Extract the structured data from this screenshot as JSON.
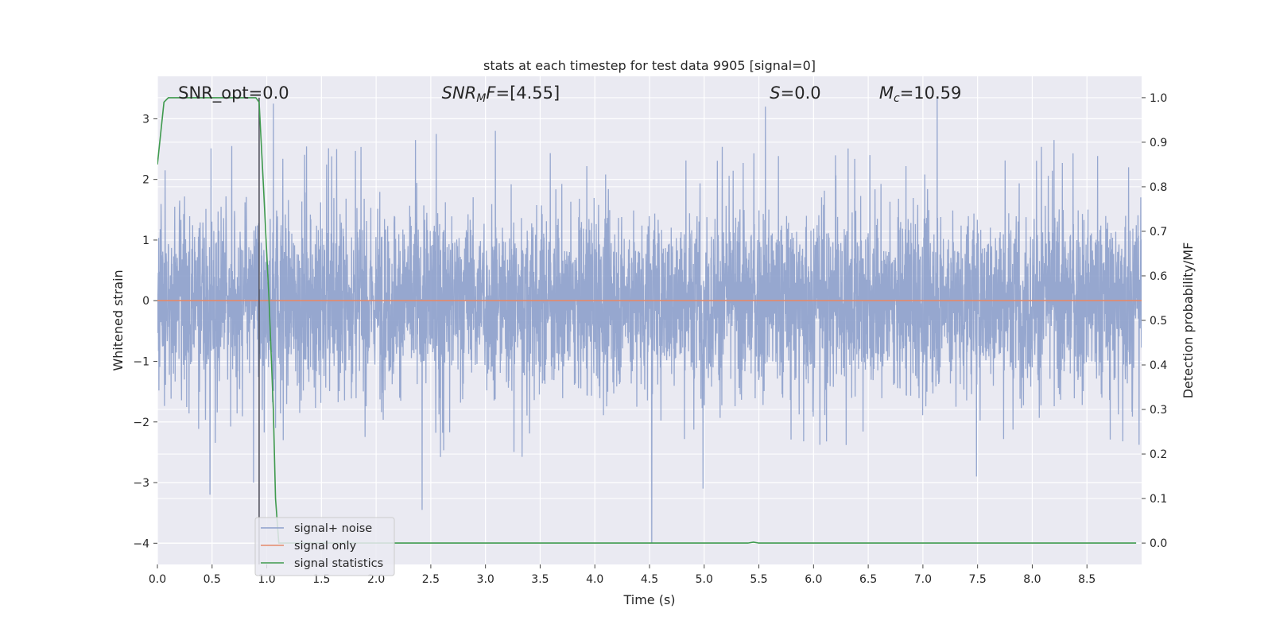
{
  "chart_data": {
    "type": "line",
    "title": "stats at each timestep for test data 9905 [signal=0]",
    "xlabel": "Time (s)",
    "ylabel": "Whitened strain",
    "ylabel_right": "Detection probability/MF",
    "xlim": [
      0.0,
      9.0
    ],
    "ylim": [
      -4.35,
      3.7
    ],
    "ylim_right": [
      -0.048,
      1.048
    ],
    "x_ticks": [
      0.0,
      0.5,
      1.0,
      1.5,
      2.0,
      2.5,
      3.0,
      3.5,
      4.0,
      4.5,
      5.0,
      5.5,
      6.0,
      6.5,
      7.0,
      7.5,
      8.0,
      8.5
    ],
    "x_tick_labels": [
      "0.0",
      "0.5",
      "1.0",
      "1.5",
      "2.0",
      "2.5",
      "3.0",
      "3.5",
      "4.0",
      "4.5",
      "5.0",
      "5.5",
      "6.0",
      "6.5",
      "7.0",
      "7.5",
      "8.0",
      "8.5"
    ],
    "y_ticks": [
      3,
      2,
      1,
      0,
      -1,
      -2,
      -3,
      -4
    ],
    "y_tick_labels": [
      "3",
      "2",
      "1",
      "0",
      "−1",
      "−2",
      "−3",
      "−4"
    ],
    "y_ticks_right": [
      1.0,
      0.9,
      0.8,
      0.7,
      0.6,
      0.5,
      0.4,
      0.3,
      0.2,
      0.1,
      0.0
    ],
    "y_tick_labels_right": [
      "1.0",
      "0.9",
      "0.8",
      "0.7",
      "0.6",
      "0.5",
      "0.4",
      "0.3",
      "0.2",
      "0.1",
      "0.0"
    ],
    "grid": true,
    "legend_position": "lower-left",
    "annotations": [
      {
        "text": "SNR_opt=0.0",
        "x": 0.19
      },
      {
        "text": "SNR_MF=[4.55]",
        "x": 2.6
      },
      {
        "text": "S=0.0",
        "x": 5.6
      },
      {
        "text": "M_c=10.59",
        "x": 6.6
      }
    ],
    "vline": {
      "x": 0.93
    },
    "series": [
      {
        "name": "signal+ noise",
        "axis": "left",
        "color": "#8da0cb",
        "description": "whitened noise, spikes roughly within [-3.2, 3.3], dense core within [-1.2, 1.2]",
        "extremes": [
          {
            "x": 0.07,
            "y": 2.15
          },
          {
            "x": 0.48,
            "y": -3.2
          },
          {
            "x": 0.68,
            "y": 2.55
          },
          {
            "x": 0.88,
            "y": -3.0
          },
          {
            "x": 1.06,
            "y": 3.25
          },
          {
            "x": 1.15,
            "y": -2.3
          },
          {
            "x": 1.64,
            "y": 2.5
          },
          {
            "x": 2.36,
            "y": 2.65
          },
          {
            "x": 2.42,
            "y": -3.45
          },
          {
            "x": 2.55,
            "y": 2.75
          },
          {
            "x": 3.09,
            "y": 2.8
          },
          {
            "x": 4.52,
            "y": -4.0
          },
          {
            "x": 4.99,
            "y": -3.1
          },
          {
            "x": 5.56,
            "y": 3.2
          },
          {
            "x": 7.13,
            "y": 3.35
          },
          {
            "x": 7.49,
            "y": -2.9
          },
          {
            "x": 8.2,
            "y": 2.65
          },
          {
            "x": 8.88,
            "y": 2.2
          }
        ]
      },
      {
        "name": "signal only",
        "axis": "left",
        "color": "#e5896a",
        "x": [
          0.0,
          9.0
        ],
        "values": [
          0.0,
          0.0
        ]
      },
      {
        "name": "signal statistics",
        "axis": "right",
        "color": "#3f9a4e",
        "x": [
          0.0,
          0.06,
          0.1,
          0.15,
          0.5,
          0.9,
          0.93,
          0.97,
          1.02,
          1.06,
          1.08,
          1.11,
          5.4,
          5.45,
          5.5,
          8.95
        ],
        "values": [
          0.85,
          0.99,
          1.0,
          1.0,
          1.0,
          1.0,
          0.99,
          0.8,
          0.55,
          0.3,
          0.1,
          0.0,
          0.0,
          0.002,
          0.0,
          0.0
        ]
      }
    ]
  }
}
